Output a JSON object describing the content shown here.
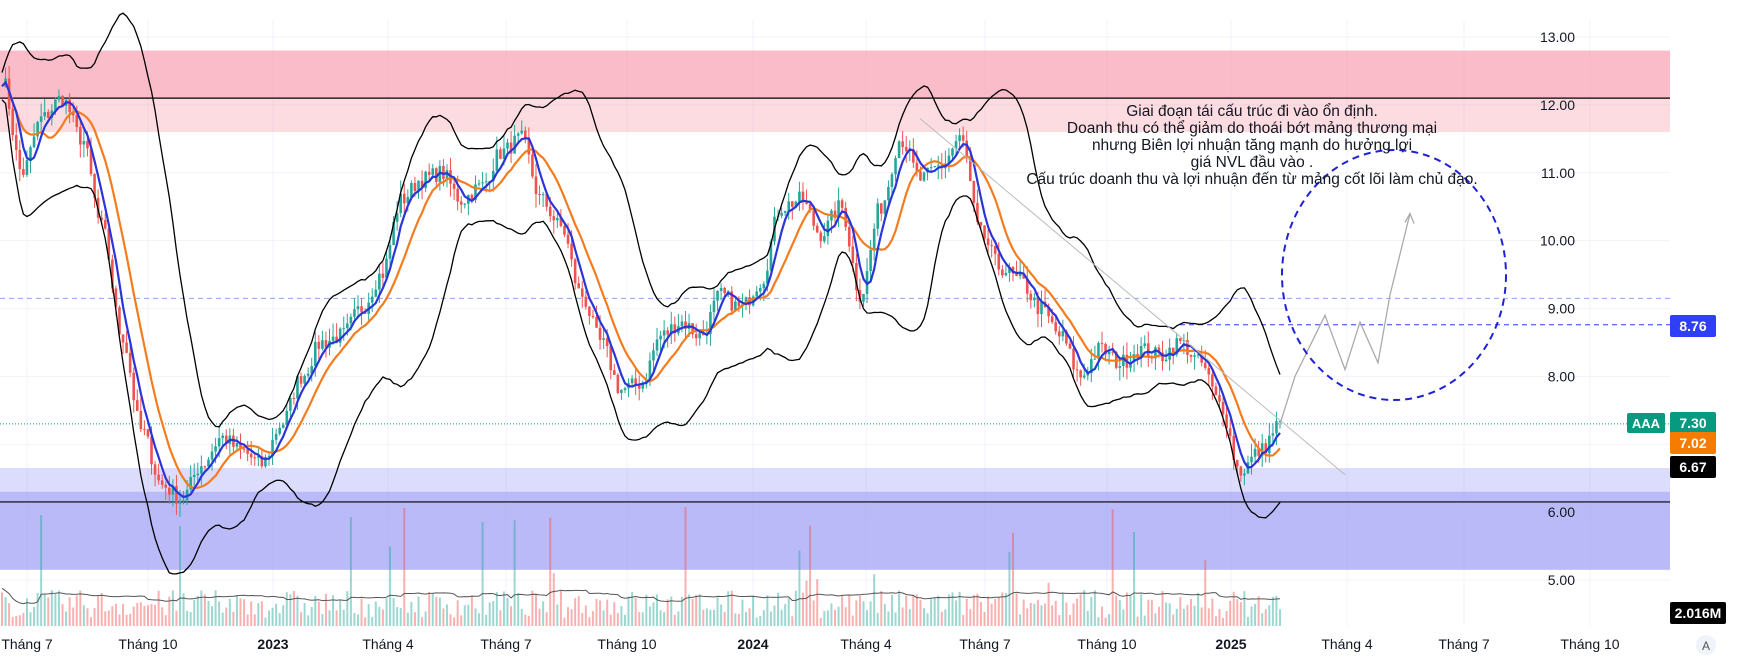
{
  "symbol": "AAA",
  "chart_data": {
    "type": "candlestick",
    "ylim": [
      4.8,
      13.2
    ],
    "y_ticks": [
      "13.00",
      "12.00",
      "11.00",
      "10.00",
      "9.00",
      "8.00",
      "6.00",
      "5.00"
    ],
    "x_ticks": [
      {
        "label": "Tháng 7",
        "bold": false
      },
      {
        "label": "Tháng 10",
        "bold": false
      },
      {
        "label": "2023",
        "bold": true
      },
      {
        "label": "Tháng 4",
        "bold": false
      },
      {
        "label": "Tháng 7",
        "bold": false
      },
      {
        "label": "Tháng 10",
        "bold": false
      },
      {
        "label": "2024",
        "bold": true
      },
      {
        "label": "Tháng 4",
        "bold": false
      },
      {
        "label": "Tháng 7",
        "bold": false
      },
      {
        "label": "Tháng 10",
        "bold": false
      },
      {
        "label": "2025",
        "bold": true
      },
      {
        "label": "Tháng 4",
        "bold": false
      },
      {
        "label": "Tháng 7",
        "bold": false
      },
      {
        "label": "Tháng 10",
        "bold": false
      }
    ],
    "resistance_zone": {
      "from": 11.6,
      "to": 12.8,
      "line": 12.1
    },
    "support_zone": {
      "from": 5.15,
      "to": 6.65,
      "line": 6.15
    },
    "dashed_levels": [
      9.15,
      8.76
    ],
    "price_series": [
      12.4,
      11.0,
      11.8,
      12.1,
      11.5,
      10.2,
      8.6,
      7.2,
      6.4,
      6.2,
      6.7,
      7.1,
      6.9,
      6.7,
      7.3,
      8.0,
      8.5,
      8.6,
      9.0,
      9.5,
      10.6,
      10.9,
      11.0,
      10.6,
      10.8,
      11.3,
      11.5,
      10.6,
      10.2,
      9.2,
      8.5,
      7.8,
      7.9,
      8.6,
      8.8,
      8.6,
      9.2,
      9.0,
      9.4,
      10.5,
      10.6,
      10.1,
      10.5,
      9.2,
      10.5,
      11.5,
      10.9,
      11.1,
      11.5,
      10.1,
      9.6,
      9.4,
      9.0,
      8.6,
      8.0,
      8.4,
      8.2,
      8.4,
      8.3,
      8.5,
      8.2,
      7.6,
      6.6,
      6.9,
      7.3
    ],
    "badges": [
      {
        "value": "8.76",
        "color": "#2f3ef7",
        "text_color": "#ffffff"
      },
      {
        "value": "7.30",
        "color": "#089981",
        "text_color": "#ffffff"
      },
      {
        "value": "7.02",
        "color": "#f57c00",
        "text_color": "#ffffff"
      },
      {
        "value": "6.67",
        "color": "#000000",
        "text_color": "#ffffff"
      },
      {
        "value": "2.016M",
        "color": "#000000",
        "text_color": "#ffffff"
      }
    ],
    "annotation": [
      "Giai đoạn tái cấu trúc đi vào ổn định.",
      "Doanh thu có thể giảm do thoái bớt mảng thương mại",
      "nhưng Biên lợi nhuận tăng mạnh do hưởng lợi",
      "giá NVL đầu vào .",
      "Cấu trúc doanh thu và lợi nhuận đến từ mảng cốt lõi làm chủ đạo."
    ],
    "projection": [
      7.3,
      8.0,
      8.9,
      8.1,
      8.8,
      8.2,
      9.2,
      10.4
    ],
    "colors": {
      "up": "#26a69a",
      "down": "#ef5350",
      "ma_fast": "#2a35d8",
      "ma_slow": "#f57c1e",
      "bands": "#000000",
      "resistance": "#f7a6b5",
      "support": "#9c9cf7",
      "circle": "#1e22d4"
    }
  }
}
